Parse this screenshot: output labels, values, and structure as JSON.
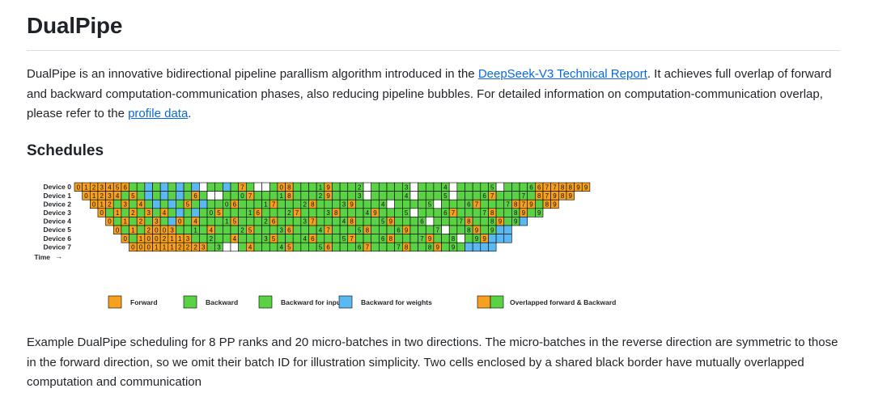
{
  "heading": "DualPipe",
  "intro": {
    "part1": "DualPipe is an innovative bidirectional pipeline parallism algorithm introduced in the ",
    "link1": "DeepSeek-V3 Technical Report",
    "part2": ". It achieves full overlap of forward and backward computation-communication phases, also reducing pipeline bubbles. For detailed information on computation-communication overlap, please refer to the ",
    "link2": "profile data",
    "part3": "."
  },
  "schedules_heading": "Schedules",
  "schedule_figure": {
    "devices": [
      "Device 0",
      "Device 1",
      "Device 2",
      "Device 3",
      "Device 4",
      "Device 5",
      "Device 6",
      "Device 7"
    ],
    "time_label": "Time",
    "time_arrow": "→",
    "colors": {
      "forward": "#f5a01e",
      "backward": "#5bd146",
      "weights": "#5bb8f0",
      "empty": "#ffffff"
    },
    "legend": [
      {
        "label": "Forward",
        "color": "#f5a01e"
      },
      {
        "label": "Backward",
        "color": "#5bd146"
      },
      {
        "label": "Backward for input",
        "color": "#5bd146"
      },
      {
        "label": "Backward for weights",
        "color": "#5bb8f0"
      },
      {
        "label": "Overlapped forward & Backward",
        "color": "#f5a01e",
        "color2": "#5bd146"
      }
    ],
    "rows": [
      "F0 F1 F2 F3 F4 F5 F6 G G W G W G W G W . G G W B F7 G . . G F0 F8 G G G B1 F9 G G G B2 . G G G G B3 . G G G B4 . G G G G B5 . G G G B6 F6 F7 F7 F8 F8 F9 F9",
      "_ F0 F1 F2 F3 F4 G F5 G W G W G W G F6 G . . G G B0 F7 G G G B1 F8 G G G B2 F9 G G G B3 . G G G G B4 . G G G B5 . G G G B6 F7 G G G B7 G F8 F7 F9 F8 F9",
      "_ _ F0 F1 F2 G F3 G F4 G W G W G F5 G W G G B0 F6 G G G B1 F7 G G G B2 F8 G G G B3 F9 G G G B4 . G G G G B5 . G G G B6 F7 G G G B7 F8 F7 F9 G F8 F9",
      "_ _ _ F0 G F1 G F2 G F3 G F4 G W G W G B0 F5 G G G B1 F6 G G G B2 F7 G G G B3 F8 G G G B4 F9 G G G B5 . G G G B6 F7 G G G B7 F8 G G B8 F9 G B9",
      "_ _ _ _ F0 G F1 G F2 G F3 G W F0 G F4 G G G B1 F5 G G G B2 F6 G G G B3 F7 G G G B4 F8 G G G B5 F9 G G G B6 . G G G B7 F8 G G B8 F9 G B9 W",
      "_ _ _ _ _ F0 G F1 G F2 F0 F0 F3 G G B1 G F4 G G G B2 F5 G G G B3 F6 G G G B4 F7 G G G B5 F8 G G G B6 F9 G G G B7 . G G B8 F9 G B9 W W",
      "_ _ _ _ _ _ F0 G F1 F0 F0 F2 F1 F1 F3 G G B2 G G F4 G G G B3 F5 G G G B4 F6 G G G B5 F7 G G G B6 F8 G G G B7 F9 G G B8 . G B9 F9 W W W",
      "_ _ _ _ _ _ _ F0 F0 F0 F1 F1 F1 F2 F2 F2 F3 G B3 . . G F4 G G G B4 F5 G G G B5 F6 G G G B6 F7 G G G B7 F8 G G B8 F9 G B9 G W W W W"
    ],
    "caption": ""
  },
  "example_text": "Example DualPipe scheduling for 8 PP ranks and 20 micro-batches in two directions. The micro-batches in the reverse direction are symmetric to those in the forward direction, so we omit their batch ID for illustration simplicity. Two cells enclosed by a shared black border have mutually overlapped computation and communication"
}
